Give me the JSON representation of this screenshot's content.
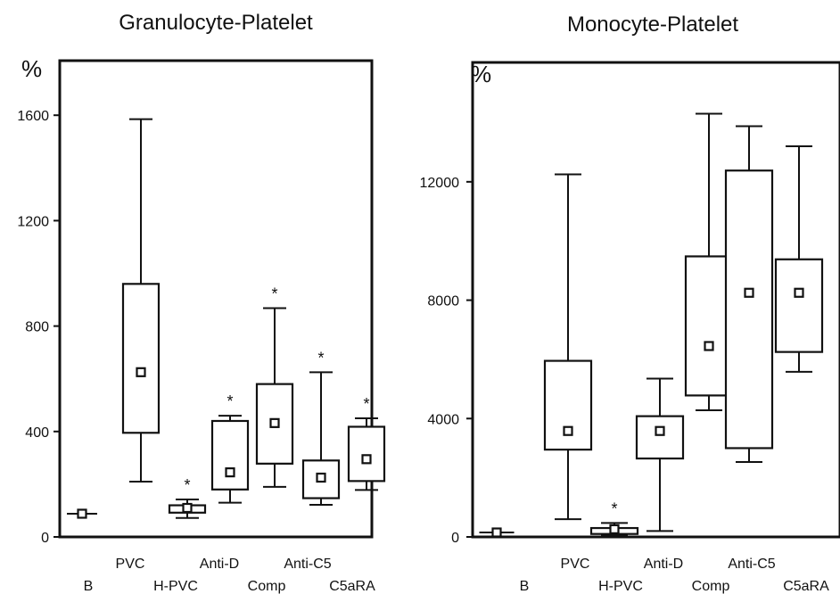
{
  "chart_data": [
    {
      "type": "boxplot",
      "title": "Granulocyte-Platelet",
      "ylabel": "%",
      "ylim": [
        0,
        1800
      ],
      "yticks": [
        0,
        400,
        800,
        1200,
        1600
      ],
      "categories": [
        "B",
        "PVC",
        "H-PVC",
        "Anti-D",
        "Comp",
        "Anti-C5",
        "C5aRA"
      ],
      "boxes": [
        {
          "category": "B",
          "whisker_low": 88,
          "q1": 88,
          "median": 88,
          "q3": 88,
          "whisker_high": 88,
          "significant": false
        },
        {
          "category": "PVC",
          "whisker_low": 210,
          "q1": 395,
          "median": 625,
          "q3": 960,
          "whisker_high": 1585,
          "significant": false
        },
        {
          "category": "H-PVC",
          "whisker_low": 72,
          "q1": 92,
          "median": 110,
          "q3": 120,
          "whisker_high": 142,
          "significant": true
        },
        {
          "category": "Anti-D",
          "whisker_low": 130,
          "q1": 180,
          "median": 245,
          "q3": 440,
          "whisker_high": 460,
          "significant": true
        },
        {
          "category": "Comp",
          "whisker_low": 190,
          "q1": 278,
          "median": 432,
          "q3": 580,
          "whisker_high": 868,
          "significant": true
        },
        {
          "category": "Anti-C5",
          "whisker_low": 122,
          "q1": 147,
          "median": 225,
          "q3": 290,
          "whisker_high": 625,
          "significant": true
        },
        {
          "category": "C5aRA",
          "whisker_low": 178,
          "q1": 212,
          "median": 295,
          "q3": 418,
          "whisker_high": 450,
          "significant": true
        }
      ],
      "significance_marker": "*"
    },
    {
      "type": "boxplot",
      "title": "Monocyte-Platelet",
      "ylabel": "%",
      "ylim": [
        0,
        15800
      ],
      "yticks": [
        0,
        4000,
        8000,
        12000
      ],
      "categories": [
        "B",
        "PVC",
        "H-PVC",
        "Anti-D",
        "Comp",
        "Anti-C5",
        "C5aRA"
      ],
      "boxes": [
        {
          "category": "B",
          "whisker_low": 150,
          "q1": 150,
          "median": 150,
          "q3": 150,
          "whisker_high": 150,
          "significant": false
        },
        {
          "category": "PVC",
          "whisker_low": 600,
          "q1": 2950,
          "median": 3580,
          "q3": 5950,
          "whisker_high": 12250,
          "significant": false
        },
        {
          "category": "H-PVC",
          "whisker_low": 60,
          "q1": 100,
          "median": 260,
          "q3": 300,
          "whisker_high": 470,
          "significant": true
        },
        {
          "category": "Anti-D",
          "whisker_low": 200,
          "q1": 2650,
          "median": 3580,
          "q3": 4080,
          "whisker_high": 5350,
          "significant": false
        },
        {
          "category": "Comp",
          "whisker_low": 4280,
          "q1": 4780,
          "median": 6450,
          "q3": 9480,
          "whisker_high": 14300,
          "significant": false
        },
        {
          "category": "Anti-C5",
          "whisker_low": 2530,
          "q1": 3000,
          "median": 8250,
          "q3": 12380,
          "whisker_high": 13880,
          "significant": false
        },
        {
          "category": "C5aRA",
          "whisker_low": 5580,
          "q1": 6250,
          "median": 8250,
          "q3": 9380,
          "whisker_high": 13200,
          "significant": false
        }
      ],
      "significance_marker": "*"
    }
  ]
}
